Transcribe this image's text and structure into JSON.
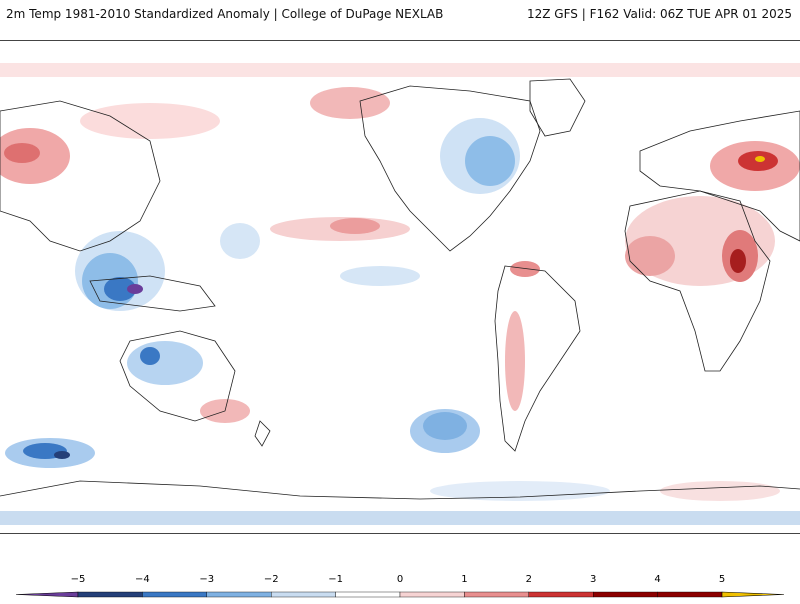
{
  "header": {
    "title": "2m Temp 1981-2010 Standardized Anomaly | College of DuPage NEXLAB",
    "run_info": "12Z GFS | F162 Valid: 06Z TUE APR 01 2025"
  },
  "colorbar": {
    "tick_labels": [
      "−5",
      "−4",
      "−3",
      "−2",
      "−1",
      "0",
      "1",
      "2",
      "3",
      "4",
      "5"
    ],
    "colors": [
      "#6a3d9a",
      "#243f78",
      "#3a78c4",
      "#7fb1e2",
      "#c9dcf0",
      "#ffffff",
      "#f6d3d3",
      "#e88f8f",
      "#cc3333",
      "#8b0000",
      "#f0c000"
    ]
  }
}
